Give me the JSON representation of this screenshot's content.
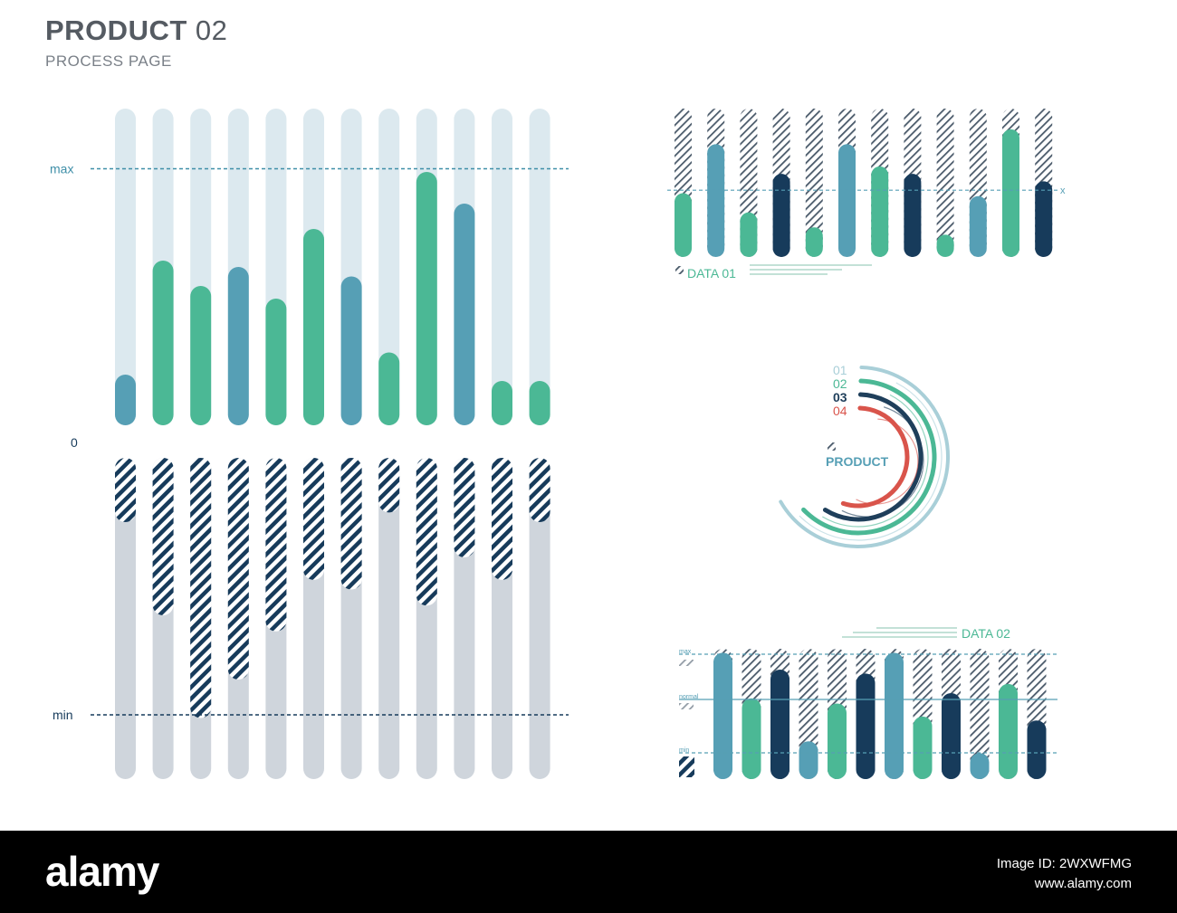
{
  "header": {
    "title_bold": "PRODUCT",
    "title_num": "02",
    "subtitle": "PROCESS PAGE"
  },
  "colors": {
    "teal": "#4bb895",
    "blue": "#569fb5",
    "navy": "#173b5b",
    "light_track": "#dce9ef",
    "grey_track": "#cfd5dc",
    "red": "#d9544b"
  },
  "chart_data": [
    {
      "type": "bar",
      "name": "main-upper",
      "labels": {
        "max": "max",
        "zero": "0"
      },
      "ylim": [
        0,
        1
      ],
      "max_line": 0.81,
      "values": [
        0.16,
        0.52,
        0.44,
        0.5,
        0.4,
        0.62,
        0.47,
        0.23,
        0.8,
        0.7,
        0.14,
        0.14
      ],
      "series_color": [
        "blue",
        "teal",
        "teal",
        "blue",
        "teal",
        "teal",
        "blue",
        "teal",
        "teal",
        "blue",
        "teal",
        "teal"
      ]
    },
    {
      "type": "bar",
      "name": "main-lower",
      "labels": {
        "min": "min"
      },
      "ylim": [
        0,
        1
      ],
      "min_line": 0.8,
      "values": [
        0.2,
        0.49,
        0.81,
        0.69,
        0.54,
        0.38,
        0.41,
        0.17,
        0.46,
        0.31,
        0.38,
        0.2
      ]
    },
    {
      "type": "bar",
      "name": "data-01",
      "label": "DATA 01",
      "marker_label": "x",
      "ylim": [
        0,
        1
      ],
      "x_line": 0.45,
      "values": [
        0.43,
        0.76,
        0.3,
        0.56,
        0.2,
        0.76,
        0.61,
        0.56,
        0.15,
        0.41,
        0.86,
        0.51
      ],
      "series_color": [
        "teal",
        "blue",
        "teal",
        "navy",
        "teal",
        "blue",
        "teal",
        "navy",
        "teal",
        "blue",
        "teal",
        "navy"
      ]
    },
    {
      "type": "radial",
      "name": "product-rings",
      "label": "PRODUCT",
      "rings": [
        {
          "label": "01",
          "color": "#a9cfd8",
          "value": 0.85
        },
        {
          "label": "02",
          "color": "#4bb895",
          "value": 0.8
        },
        {
          "label": "03",
          "color": "#1f3f5b",
          "value": 0.75
        },
        {
          "label": "04",
          "color": "#d9544b",
          "value": 0.7
        }
      ]
    },
    {
      "type": "bar",
      "name": "data-02",
      "label": "DATA 02",
      "levels": {
        "max": "max",
        "normal": "normal",
        "min": "min"
      },
      "ylim": [
        0,
        1
      ],
      "values": [
        0.97,
        0.62,
        0.84,
        0.29,
        0.58,
        0.81,
        0.97,
        0.48,
        0.66,
        0.2,
        0.73,
        0.45
      ],
      "series_color": [
        "blue",
        "teal",
        "navy",
        "blue",
        "teal",
        "navy",
        "blue",
        "teal",
        "navy",
        "blue",
        "teal",
        "navy"
      ]
    }
  ],
  "footer": {
    "logo": "alamy",
    "code_line1": "Image ID: 2WXWFMG",
    "code_line2": "www.alamy.com",
    "code_short": "2WXWFMG"
  }
}
